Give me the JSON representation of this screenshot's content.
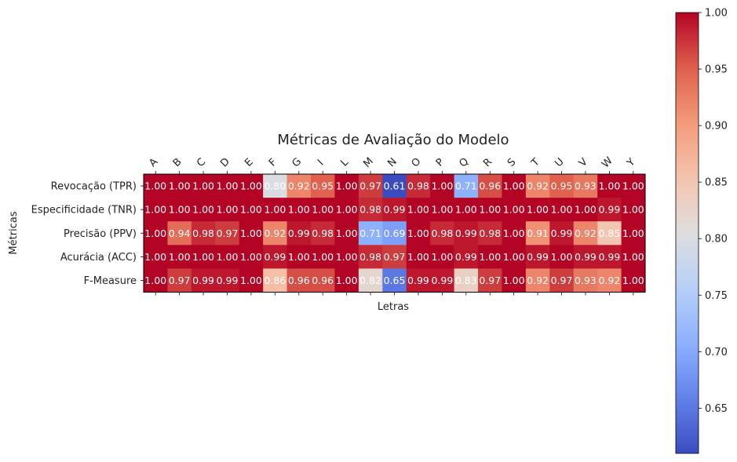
{
  "chart_data": {
    "type": "heatmap",
    "title": "Métricas de Avaliação do Modelo",
    "xlabel": "Letras",
    "ylabel": "Métricas",
    "x_categories": [
      "A",
      "B",
      "C",
      "D",
      "E",
      "F",
      "G",
      "I",
      "L",
      "M",
      "N",
      "O",
      "P",
      "Q",
      "R",
      "S",
      "T",
      "U",
      "V",
      "W",
      "Y"
    ],
    "y_categories": [
      "Revocação (TPR)",
      "Especificidade (TNR)",
      "Precisão (PPV)",
      "Acurácia (ACC)",
      "F-Measure"
    ],
    "values": [
      [
        1.0,
        1.0,
        1.0,
        1.0,
        1.0,
        0.8,
        0.92,
        0.95,
        1.0,
        0.97,
        0.61,
        0.98,
        1.0,
        0.71,
        0.96,
        1.0,
        0.92,
        0.95,
        0.93,
        1.0,
        1.0
      ],
      [
        1.0,
        1.0,
        1.0,
        1.0,
        1.0,
        1.0,
        1.0,
        1.0,
        1.0,
        0.98,
        0.99,
        1.0,
        1.0,
        1.0,
        1.0,
        1.0,
        1.0,
        1.0,
        1.0,
        0.99,
        1.0
      ],
      [
        1.0,
        0.94,
        0.98,
        0.97,
        1.0,
        0.92,
        0.99,
        0.98,
        1.0,
        0.71,
        0.69,
        1.0,
        0.98,
        0.99,
        0.98,
        1.0,
        0.91,
        0.99,
        0.92,
        0.85,
        1.0
      ],
      [
        1.0,
        1.0,
        1.0,
        1.0,
        1.0,
        0.99,
        1.0,
        1.0,
        1.0,
        0.98,
        0.97,
        1.0,
        1.0,
        0.99,
        1.0,
        1.0,
        0.99,
        1.0,
        0.99,
        0.99,
        1.0
      ],
      [
        1.0,
        0.97,
        0.99,
        0.99,
        1.0,
        0.86,
        0.96,
        0.96,
        1.0,
        0.82,
        0.65,
        0.99,
        0.99,
        0.83,
        0.97,
        1.0,
        0.92,
        0.97,
        0.93,
        0.92,
        1.0
      ]
    ],
    "colormap": "coolwarm",
    "vmin": 0.61,
    "vmax": 1.0,
    "colorbar_ticks": [
      "0.65",
      "0.70",
      "0.75",
      "0.80",
      "0.85",
      "0.90",
      "0.95",
      "1.00"
    ]
  }
}
